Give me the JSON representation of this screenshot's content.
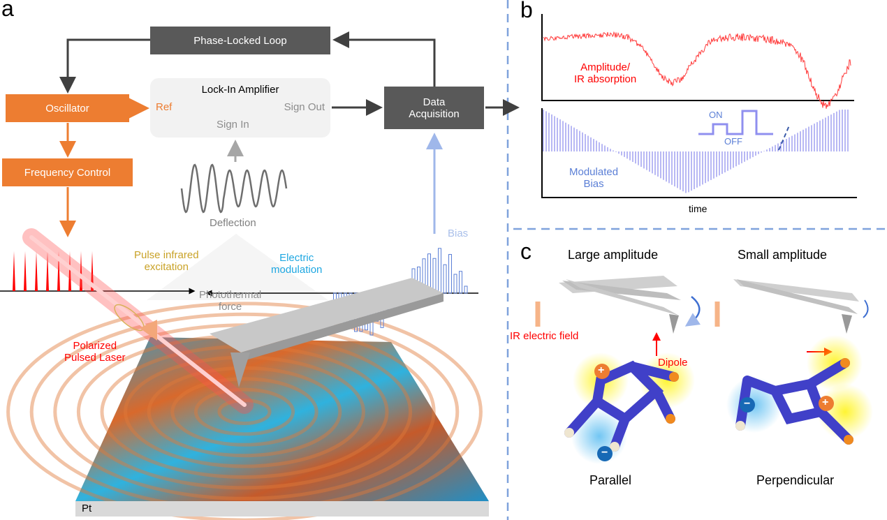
{
  "panels": {
    "a": "a",
    "b": "b",
    "c": "c"
  },
  "colors": {
    "orange": "#ED7D31",
    "dark_box": "#595959",
    "lockin_bg": "#F2F2F2",
    "signal_red": "#FF3B3B",
    "bias_blue": "#6F7FE0",
    "divider": "#7FA2DC"
  },
  "panel_a": {
    "pll": "Phase-Locked Loop",
    "oscillator": "Oscillator",
    "frequency_control": "Frequency Control",
    "lockin": {
      "title": "Lock-In Amplifier",
      "ref": "Ref",
      "sign_out": "Sign Out",
      "sign_in": "Sign In"
    },
    "data_acquisition": [
      "Data",
      "Acquisition"
    ],
    "deflection": "Deflection",
    "bias": "Bias",
    "pulse_ir": [
      "Pulse infrared",
      "excitation"
    ],
    "electric_mod": [
      "Electric",
      "modulation"
    ],
    "photothermal": [
      "Photothermal",
      "force"
    ],
    "laser": [
      "Polarized",
      "Pulsed Laser"
    ],
    "substrate": "Pt"
  },
  "panel_b": {
    "amplitude_label": [
      "Amplitude/",
      "IR absorption"
    ],
    "bias_label": [
      "Modulated",
      "Bias"
    ],
    "on": "ON",
    "off": "OFF",
    "xlabel": "time"
  },
  "panel_c": {
    "large": "Large amplitude",
    "small": "Small amplitude",
    "ir_field": "IR  electric field",
    "dipole": "Dipole",
    "parallel": "Parallel",
    "perpendicular": "Perpendicular",
    "plus": "+",
    "minus": "−"
  }
}
